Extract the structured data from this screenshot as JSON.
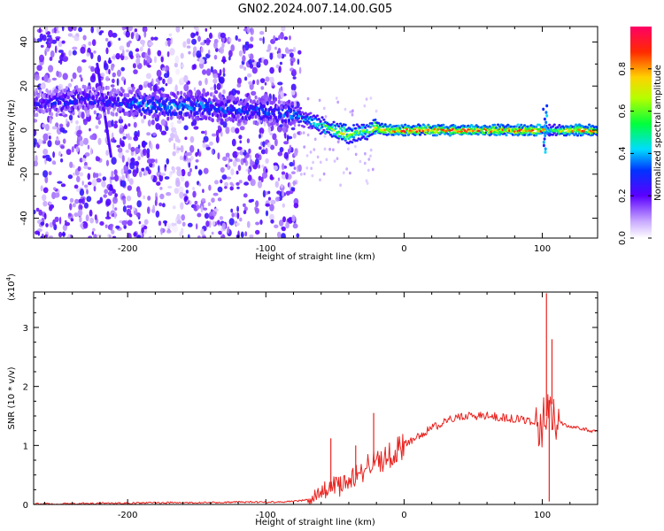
{
  "title": "GN02.2024.007.14.00.G05",
  "chart_data": [
    {
      "type": "heatmap",
      "xlabel": "Height of straight line (km)",
      "ylabel": "Frequency (Hz)",
      "xlim": [
        -268,
        140
      ],
      "ylim": [
        -49,
        47
      ],
      "xticks": [
        -200,
        -100,
        0,
        100
      ],
      "xtick_labels": [
        "-200",
        "-100",
        "0",
        "100"
      ],
      "yticks": [
        -40,
        -20,
        0,
        20,
        40
      ],
      "ytick_labels": [
        "-40",
        "-20",
        "0",
        "20",
        "40"
      ],
      "colorbar": {
        "label": "Normalized spectral amplitude",
        "range": [
          0,
          1
        ],
        "ticks": [
          0.0,
          0.2,
          0.4,
          0.6,
          0.8
        ],
        "tick_labels": [
          "0.0",
          "0.2",
          "0.4",
          "0.6",
          "0.8"
        ]
      },
      "ridge": {
        "height_km": [
          -268,
          -250,
          -230,
          -210,
          -190,
          -170,
          -150,
          -130,
          -110,
          -90,
          -80,
          -70,
          -60,
          -50,
          -40,
          -30,
          -20,
          -10,
          0,
          20,
          40,
          60,
          80,
          100,
          105,
          110,
          120,
          140
        ],
        "frequency_hz": [
          12,
          13,
          14,
          13,
          12,
          11,
          11,
          10,
          9,
          8,
          7,
          5,
          2,
          0,
          -2,
          -1,
          1,
          0,
          0,
          0,
          0,
          0,
          0,
          0,
          0,
          0,
          0,
          0
        ],
        "peak_amplitude": [
          0.25,
          0.3,
          0.3,
          0.3,
          0.4,
          0.4,
          0.4,
          0.35,
          0.35,
          0.35,
          0.4,
          0.45,
          0.6,
          0.7,
          0.7,
          0.6,
          0.75,
          0.85,
          0.9,
          0.9,
          0.9,
          0.9,
          0.9,
          0.9,
          0.6,
          0.7,
          0.85,
          0.85
        ]
      },
      "diagonal_streak": {
        "height_km": [
          -222,
          -212
        ],
        "frequency_hz": [
          30,
          -12
        ]
      },
      "vertical_spike": {
        "height_km": 102,
        "frequency_hz": [
          -10,
          12
        ]
      }
    },
    {
      "type": "line",
      "xlabel": "Height of straight line (km)",
      "ylabel": "SNR (10 * v/v)",
      "y_multiplier_label": "(x10",
      "y_multiplier_exponent": "4",
      "y_multiplier_close": ")",
      "xlim": [
        -268,
        140
      ],
      "ylim": [
        0,
        3.6
      ],
      "xticks": [
        -200,
        -100,
        0,
        100
      ],
      "xtick_labels": [
        "-200",
        "-100",
        "0",
        "100"
      ],
      "yticks": [
        0,
        1,
        2,
        3
      ],
      "ytick_labels": [
        "0",
        "1",
        "2",
        "3"
      ],
      "color": "#e8231f",
      "series": [
        {
          "x": [
            -268,
            -250,
            -220,
            -200,
            -180,
            -160,
            -140,
            -120,
            -100,
            -80,
            -70,
            -60,
            -55,
            -50,
            -45,
            -40,
            -35,
            -30,
            -25,
            -20,
            -15,
            -10,
            -5,
            0,
            10,
            20,
            30,
            40,
            50,
            60,
            70,
            80,
            90,
            95,
            100,
            103,
            106,
            108,
            110,
            112,
            115,
            120,
            130,
            140
          ],
          "y": [
            0.01,
            0.01,
            0.02,
            0.02,
            0.03,
            0.03,
            0.03,
            0.04,
            0.04,
            0.05,
            0.08,
            0.18,
            0.3,
            0.32,
            0.3,
            0.42,
            0.5,
            0.55,
            0.7,
            0.72,
            0.78,
            0.85,
            0.95,
            1.0,
            1.15,
            1.3,
            1.4,
            1.5,
            1.5,
            1.5,
            1.48,
            1.45,
            1.42,
            1.4,
            1.38,
            1.5,
            1.9,
            1.5,
            1.0,
            1.45,
            1.35,
            1.32,
            1.28,
            1.22
          ]
        }
      ],
      "spikes": [
        {
          "x": -53,
          "y": 1.12
        },
        {
          "x": -35,
          "y": 1.0
        },
        {
          "x": -22,
          "y": 1.55
        },
        {
          "x": 103,
          "y": 3.58
        },
        {
          "x": 107,
          "y": 2.8
        },
        {
          "x": 105,
          "y": 0.05
        }
      ]
    }
  ]
}
